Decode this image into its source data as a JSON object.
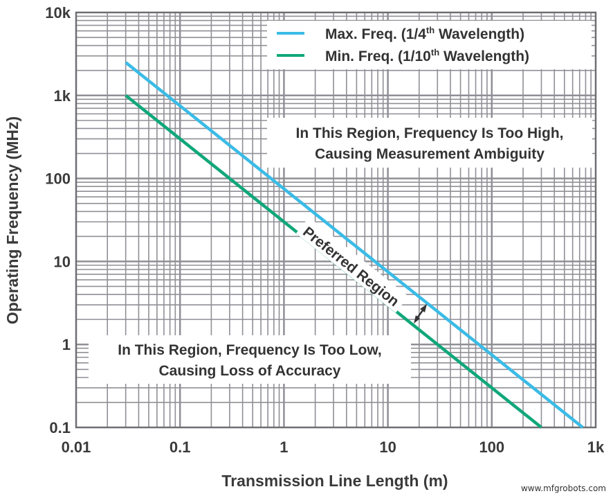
{
  "chart_data": {
    "type": "line",
    "xlabel": "Transmission Line Length (m)",
    "ylabel": "Operating Frequency (MHz)",
    "x_scale": "log",
    "y_scale": "log",
    "xlim": [
      0.01,
      1000
    ],
    "ylim": [
      0.1,
      10000
    ],
    "x_ticks": [
      0.01,
      0.1,
      1,
      10,
      100,
      1000
    ],
    "x_tick_labels": [
      "0.01",
      "0.1",
      "1",
      "10",
      "100",
      "1k"
    ],
    "y_ticks": [
      0.1,
      1,
      10,
      100,
      1000,
      10000
    ],
    "y_tick_labels": [
      "0.1",
      "1",
      "10",
      "100",
      "1k",
      "10k"
    ],
    "grid": true,
    "legend_position": "top-right",
    "series": [
      {
        "name_main": "Max. Freq. (1/4",
        "name_sup": "th",
        "name_tail": " Wavelength)",
        "color": "#3bbbe6",
        "x": [
          0.03,
          750
        ],
        "y": [
          2500,
          0.1
        ]
      },
      {
        "name_main": "Min. Freq. (1/10",
        "name_sup": "th",
        "name_tail": " Wavelength)",
        "color": "#10a77a",
        "x": [
          0.03,
          300
        ],
        "y": [
          1000,
          0.1
        ]
      }
    ],
    "annotations": {
      "high_line1": "In This Region, Frequency Is Too High,",
      "high_line2": "Causing Measurement Ambiguity",
      "preferred": "Preferred Region",
      "low_line1": "In This Region, Frequency Is Too Low,",
      "low_line2": "Causing Loss of Accuracy"
    }
  },
  "watermark": "www.mfgrobots.com"
}
